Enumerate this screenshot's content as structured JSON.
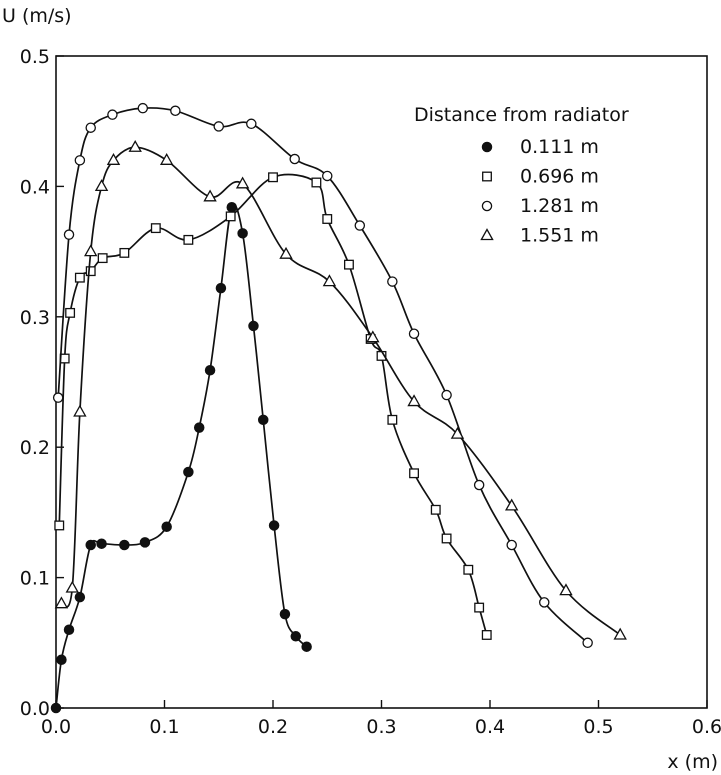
{
  "chart_data": {
    "type": "line",
    "title": "",
    "xlabel": "x (m)",
    "ylabel": "U (m/s)",
    "xlim": [
      0.0,
      0.6
    ],
    "ylim": [
      0.0,
      0.5
    ],
    "x_ticks": [
      "0.0",
      "0.1",
      "0.2",
      "0.3",
      "0.4",
      "0.5",
      "0.6"
    ],
    "y_ticks": [
      "0.0",
      "0.1",
      "0.2",
      "0.3",
      "0.4",
      "0.5"
    ],
    "grid": false,
    "legend_title": "Distance from radiator",
    "legend_position": "top-right",
    "series": [
      {
        "name": "0.111 m",
        "marker": "filled-circle",
        "points": [
          [
            0.0,
            0.0
          ],
          [
            0.005,
            0.037
          ],
          [
            0.012,
            0.06
          ],
          [
            0.022,
            0.085
          ],
          [
            0.032,
            0.125
          ],
          [
            0.042,
            0.126
          ],
          [
            0.063,
            0.125
          ],
          [
            0.082,
            0.127
          ],
          [
            0.102,
            0.139
          ],
          [
            0.122,
            0.181
          ],
          [
            0.132,
            0.215
          ],
          [
            0.142,
            0.259
          ],
          [
            0.152,
            0.322
          ],
          [
            0.162,
            0.384
          ],
          [
            0.172,
            0.364
          ],
          [
            0.182,
            0.293
          ],
          [
            0.191,
            0.221
          ],
          [
            0.201,
            0.14
          ],
          [
            0.211,
            0.072
          ],
          [
            0.221,
            0.055
          ],
          [
            0.231,
            0.047
          ]
        ]
      },
      {
        "name": "0.696 m",
        "marker": "open-square",
        "points": [
          [
            0.003,
            0.14
          ],
          [
            0.008,
            0.268
          ],
          [
            0.013,
            0.303
          ],
          [
            0.022,
            0.33
          ],
          [
            0.032,
            0.335
          ],
          [
            0.043,
            0.345
          ],
          [
            0.063,
            0.349
          ],
          [
            0.092,
            0.368
          ],
          [
            0.122,
            0.359
          ],
          [
            0.161,
            0.377
          ],
          [
            0.2,
            0.407
          ],
          [
            0.24,
            0.403
          ],
          [
            0.25,
            0.375
          ],
          [
            0.27,
            0.34
          ],
          [
            0.29,
            0.283
          ],
          [
            0.3,
            0.27
          ],
          [
            0.31,
            0.221
          ],
          [
            0.33,
            0.18
          ],
          [
            0.35,
            0.152
          ],
          [
            0.36,
            0.13
          ],
          [
            0.38,
            0.106
          ],
          [
            0.39,
            0.077
          ],
          [
            0.397,
            0.056
          ]
        ]
      },
      {
        "name": "1.281 m",
        "marker": "open-circle",
        "points": [
          [
            0.002,
            0.238
          ],
          [
            0.012,
            0.363
          ],
          [
            0.022,
            0.42
          ],
          [
            0.032,
            0.445
          ],
          [
            0.052,
            0.455
          ],
          [
            0.08,
            0.46
          ],
          [
            0.11,
            0.458
          ],
          [
            0.15,
            0.446
          ],
          [
            0.18,
            0.448
          ],
          [
            0.22,
            0.421
          ],
          [
            0.25,
            0.408
          ],
          [
            0.28,
            0.37
          ],
          [
            0.31,
            0.327
          ],
          [
            0.33,
            0.287
          ],
          [
            0.36,
            0.24
          ],
          [
            0.39,
            0.171
          ],
          [
            0.42,
            0.125
          ],
          [
            0.45,
            0.081
          ],
          [
            0.49,
            0.05
          ]
        ]
      },
      {
        "name": "1.551 m",
        "marker": "open-triangle",
        "points": [
          [
            0.005,
            0.08
          ],
          [
            0.015,
            0.092
          ],
          [
            0.022,
            0.227
          ],
          [
            0.032,
            0.35
          ],
          [
            0.042,
            0.4
          ],
          [
            0.053,
            0.42
          ],
          [
            0.073,
            0.43
          ],
          [
            0.102,
            0.42
          ],
          [
            0.142,
            0.392
          ],
          [
            0.172,
            0.402
          ],
          [
            0.212,
            0.348
          ],
          [
            0.252,
            0.327
          ],
          [
            0.292,
            0.284
          ],
          [
            0.33,
            0.235
          ],
          [
            0.37,
            0.21
          ],
          [
            0.42,
            0.155
          ],
          [
            0.47,
            0.09
          ],
          [
            0.52,
            0.056
          ]
        ]
      }
    ]
  }
}
